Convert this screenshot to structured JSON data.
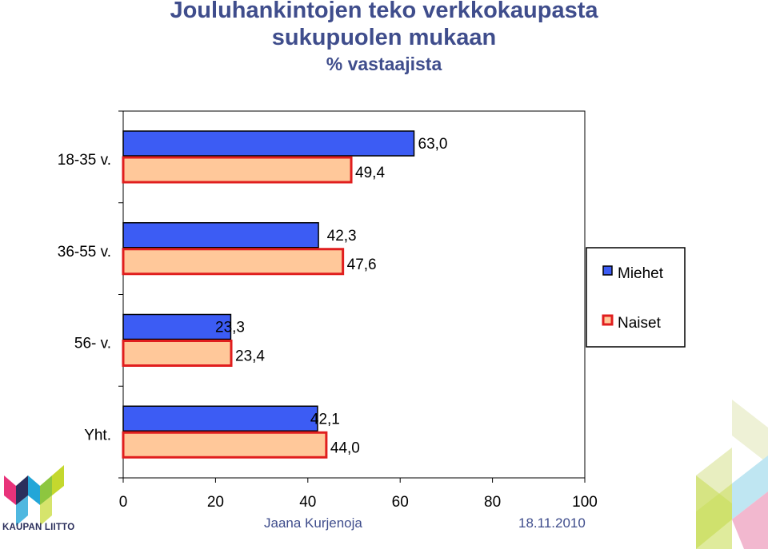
{
  "title": {
    "line1": "Jouluhankintojen teko verkkokaupasta",
    "line2": "sukupuolen mukaan",
    "subtitle": "% vastaajista"
  },
  "footer": {
    "author": "Jaana Kurjenoja",
    "date": "18.11.2010",
    "logo_text": "KAUPAN LIITTO"
  },
  "colors": {
    "miehet": "#3c5cf4",
    "naiset_fill": "#ffc89a",
    "naiset_border": "#e01e1e",
    "title": "#3f4d8c"
  },
  "chart_data": {
    "type": "bar",
    "orientation": "horizontal",
    "title": "Jouluhankintojen teko verkkokaupasta sukupuolen mukaan",
    "subtitle": "% vastaajista",
    "categories": [
      "18-35 v.",
      "36-55 v.",
      "56- v.",
      "Yht."
    ],
    "series": [
      {
        "name": "Miehet",
        "values": [
          63.0,
          42.3,
          23.3,
          42.1
        ],
        "labels": [
          "63,0",
          "42,3",
          "23,3",
          "42,1"
        ]
      },
      {
        "name": "Naiset",
        "values": [
          49.4,
          47.6,
          23.4,
          44.0
        ],
        "labels": [
          "49,4",
          "47,6",
          "23,4",
          "44,0"
        ]
      }
    ],
    "xlim": [
      0,
      100
    ],
    "xticks": [
      "0",
      "20",
      "40",
      "60",
      "80",
      "100"
    ],
    "legend": {
      "position": "right",
      "entries": [
        "Miehet",
        "Naiset"
      ]
    }
  }
}
